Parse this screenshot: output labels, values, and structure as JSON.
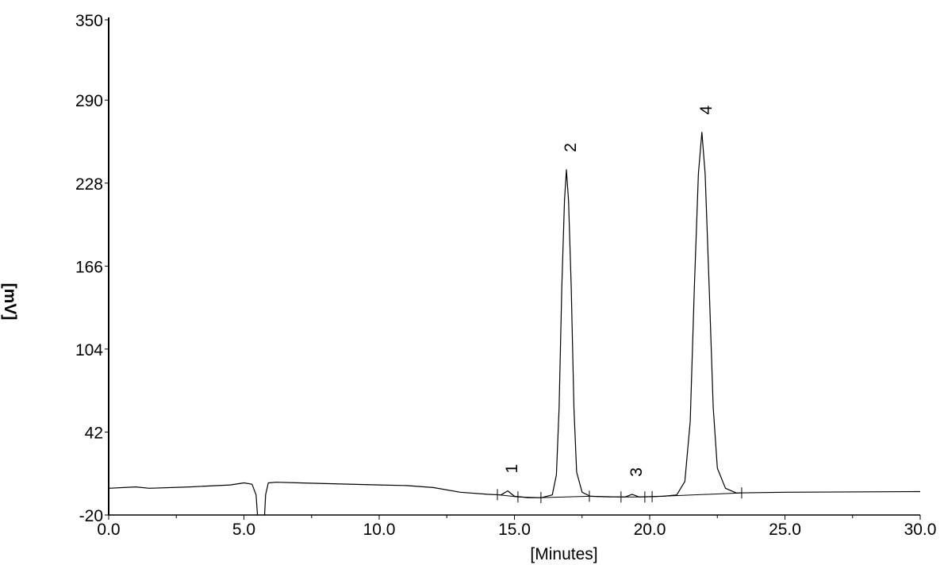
{
  "chart_data": {
    "type": "line",
    "title": "",
    "xlabel": "[Minutes]",
    "ylabel": "[mV]",
    "xlim": [
      0,
      30
    ],
    "ylim": [
      -20,
      350
    ],
    "x_ticks": [
      0,
      5,
      10,
      15,
      20,
      25,
      30
    ],
    "x_tick_labels": [
      "0.0",
      "5.0",
      "10.0",
      "15.0",
      "20.0",
      "25.0",
      "30.0"
    ],
    "x_minor_ticks": [
      2.5,
      7.5,
      12.5,
      17.5,
      22.5,
      27.5
    ],
    "y_ticks": [
      -20,
      42,
      104,
      166,
      228,
      290,
      350
    ],
    "y_tick_labels": [
      "-20",
      "42",
      "104",
      "166",
      "228",
      "290",
      "350"
    ],
    "grid": false,
    "line_color": "#000000",
    "series": [
      {
        "x": [
          0.0,
          1.0,
          1.5,
          3.0,
          4.5,
          5.0,
          5.3,
          5.45,
          5.52,
          5.75,
          5.8,
          5.9,
          6.2,
          8.0,
          10.0,
          11.0,
          12.0,
          13.0,
          14.0,
          14.5,
          14.75,
          15.0,
          15.5,
          16.0,
          16.4,
          16.55,
          16.65,
          16.75,
          16.85,
          16.92,
          17.0,
          17.1,
          17.2,
          17.3,
          17.5,
          17.8,
          18.5,
          19.1,
          19.35,
          19.6,
          20.5,
          21.0,
          21.3,
          21.5,
          21.65,
          21.8,
          21.93,
          22.05,
          22.2,
          22.35,
          22.5,
          22.8,
          23.2,
          25.0,
          30.0
        ],
        "y": [
          0,
          1,
          0,
          1,
          2.5,
          4,
          3,
          -5,
          -25,
          -25,
          -5,
          4,
          4.5,
          3.5,
          2.5,
          2,
          0.5,
          -3,
          -4.5,
          -5,
          -2,
          -6,
          -7,
          -7,
          -5,
          10,
          60,
          150,
          215,
          238,
          215,
          150,
          60,
          12,
          -3,
          -6,
          -6.5,
          -6.5,
          -4.5,
          -6.5,
          -6,
          -5,
          5,
          50,
          150,
          235,
          266,
          235,
          150,
          60,
          15,
          0,
          -3.5,
          -3,
          -2.5
        ]
      }
    ],
    "peaks": [
      {
        "label": "1",
        "x": 14.75,
        "y": -2
      },
      {
        "label": "2",
        "x": 16.92,
        "y": 238
      },
      {
        "label": "3",
        "x": 19.35,
        "y": -4.5
      },
      {
        "label": "4",
        "x": 21.93,
        "y": 266
      }
    ],
    "integration_marks": [
      {
        "x": 14.37,
        "y": -4.8
      },
      {
        "x": 15.13,
        "y": -6.5
      },
      {
        "x": 15.98,
        "y": -7
      },
      {
        "x": 17.77,
        "y": -6
      },
      {
        "x": 18.94,
        "y": -6.5
      },
      {
        "x": 19.82,
        "y": -6.5
      },
      {
        "x": 20.09,
        "y": -6.3
      },
      {
        "x": 23.4,
        "y": -3.5
      }
    ]
  }
}
